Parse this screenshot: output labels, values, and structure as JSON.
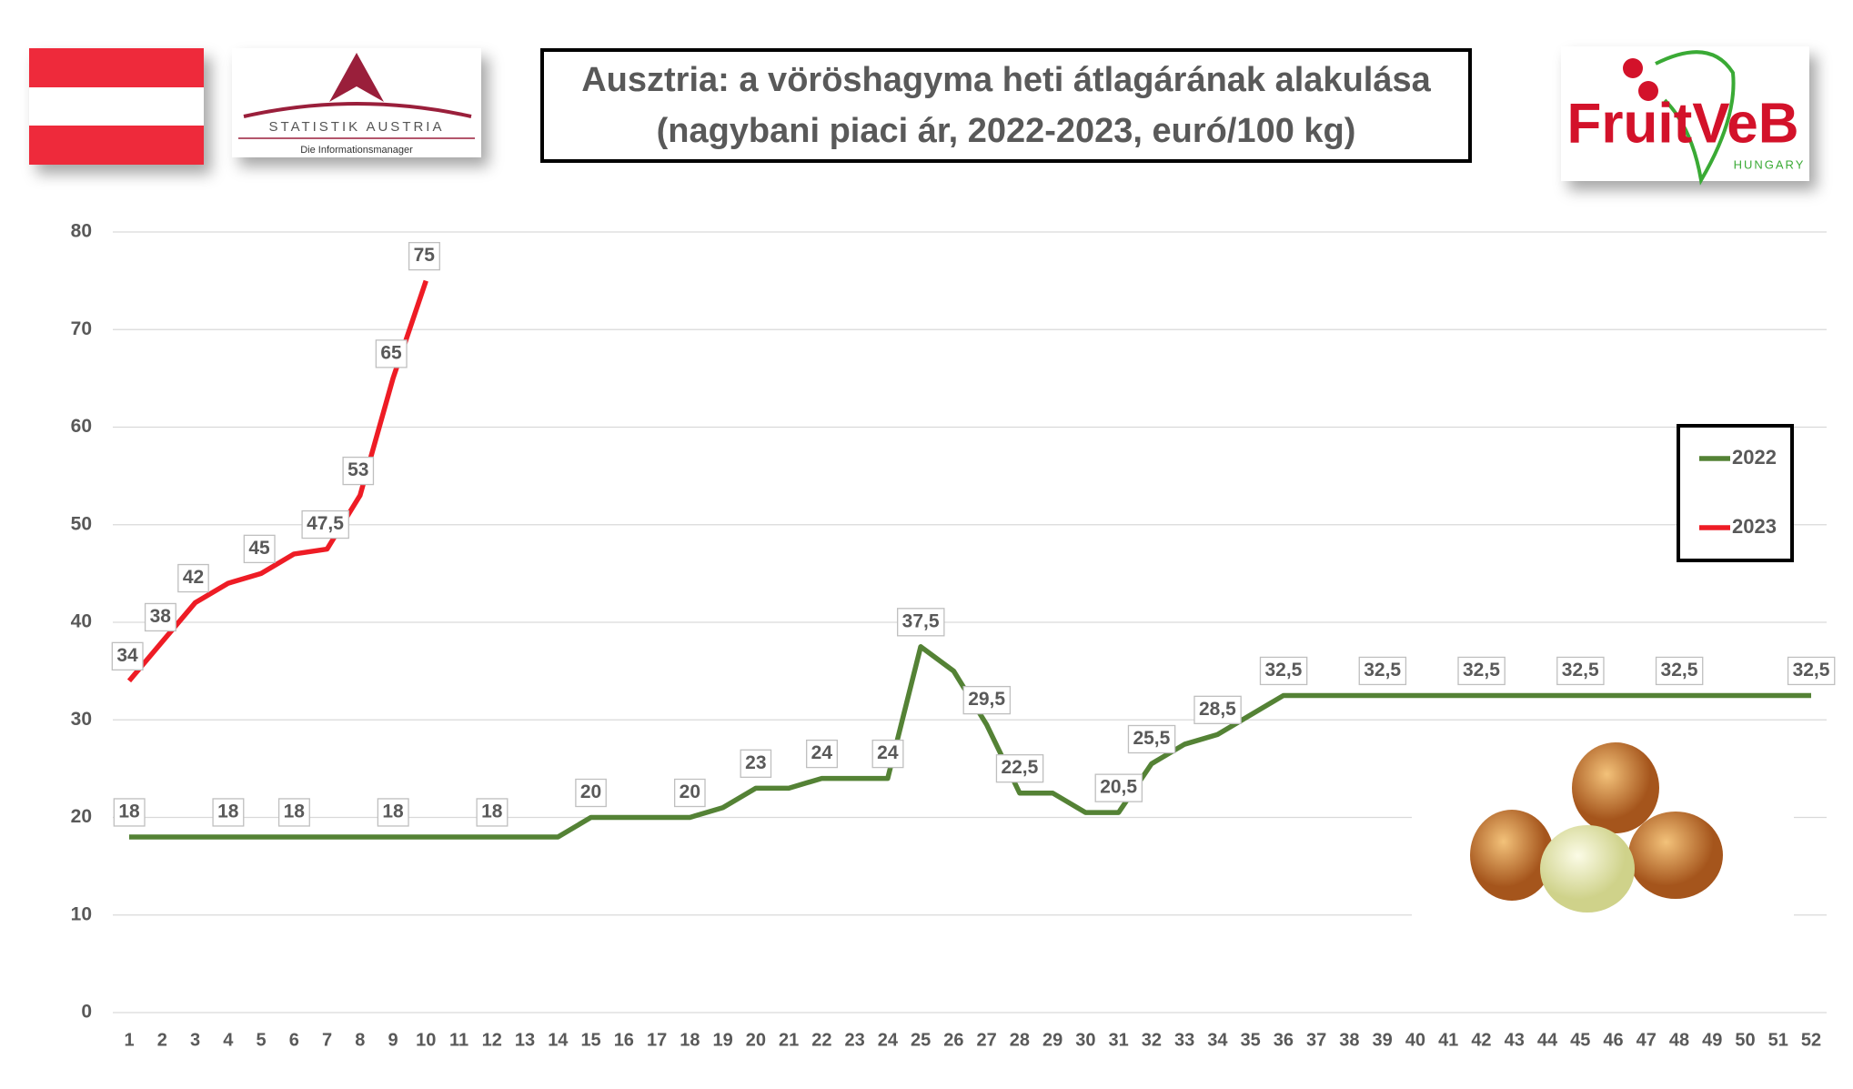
{
  "chart_data": {
    "type": "line",
    "title": "Ausztria: a vöröshagyma heti átlagárának alakulása",
    "subtitle": "(nagybani piaci ár, 2022-2023, euró/100 kg)",
    "categories": [
      "1",
      "2",
      "3",
      "4",
      "5",
      "6",
      "7",
      "8",
      "9",
      "10",
      "11",
      "12",
      "13",
      "14",
      "15",
      "16",
      "17",
      "18",
      "19",
      "20",
      "21",
      "22",
      "23",
      "24",
      "25",
      "26",
      "27",
      "28",
      "29",
      "30",
      "31",
      "32",
      "33",
      "34",
      "35",
      "36",
      "37",
      "38",
      "39",
      "40",
      "41",
      "42",
      "43",
      "44",
      "45",
      "46",
      "47",
      "48",
      "49",
      "50",
      "51",
      "52"
    ],
    "series": [
      {
        "name": "2022",
        "color": "#548235",
        "values": [
          18,
          18,
          18,
          18,
          18,
          18,
          18,
          18,
          18,
          18,
          18,
          18,
          18,
          18,
          20,
          20,
          20,
          20,
          21,
          23,
          23,
          24,
          24,
          24,
          37.5,
          35,
          29.5,
          22.5,
          22.5,
          20.5,
          20.5,
          25.5,
          27.5,
          28.5,
          30.5,
          32.5,
          32.5,
          32.5,
          32.5,
          32.5,
          32.5,
          32.5,
          32.5,
          32.5,
          32.5,
          32.5,
          32.5,
          32.5,
          32.5,
          32.5,
          32.5,
          32.5
        ],
        "value_labels": [
          "18",
          null,
          null,
          "18",
          null,
          "18",
          null,
          null,
          "18",
          null,
          null,
          "18",
          null,
          null,
          "20",
          null,
          null,
          "20",
          null,
          "23",
          null,
          "24",
          null,
          "24",
          "37,5",
          null,
          "29,5",
          "22,5",
          null,
          null,
          "20,5",
          "25,5",
          null,
          "28,5",
          null,
          "32,5",
          null,
          null,
          "32,5",
          null,
          null,
          "32,5",
          null,
          null,
          "32,5",
          null,
          null,
          "32,5",
          null,
          null,
          null,
          "32,5"
        ]
      },
      {
        "name": "2023",
        "color": "#ee1c25",
        "values": [
          34,
          38,
          42,
          44,
          45,
          47,
          47.5,
          53,
          65,
          75,
          null,
          null,
          null,
          null,
          null,
          null,
          null,
          null,
          null,
          null,
          null,
          null,
          null,
          null,
          null,
          null,
          null,
          null,
          null,
          null,
          null,
          null,
          null,
          null,
          null,
          null,
          null,
          null,
          null,
          null,
          null,
          null,
          null,
          null,
          null,
          null,
          null,
          null,
          null,
          null,
          null,
          null
        ],
        "value_labels": [
          "34",
          "38",
          "42",
          null,
          "45",
          null,
          "47,5",
          "53",
          "65",
          "75",
          null,
          null,
          null,
          null,
          null,
          null,
          null,
          null,
          null,
          null,
          null,
          null,
          null,
          null,
          null,
          null,
          null,
          null,
          null,
          null,
          null,
          null,
          null,
          null,
          null,
          null,
          null,
          null,
          null,
          null,
          null,
          null,
          null,
          null,
          null,
          null,
          null,
          null,
          null,
          null,
          null,
          null
        ]
      }
    ],
    "ylim": [
      0,
      80
    ],
    "yticks": [
      0,
      10,
      20,
      30,
      40,
      50,
      60,
      70,
      80
    ],
    "grid": true,
    "legend": "right"
  },
  "logos": {
    "statistik": "STATISTIK AUSTRIA",
    "statistik_tagline": "Die Informationsmanager",
    "fruitveb": "FruitVeB",
    "fruitveb_country": "HUNGARY"
  }
}
